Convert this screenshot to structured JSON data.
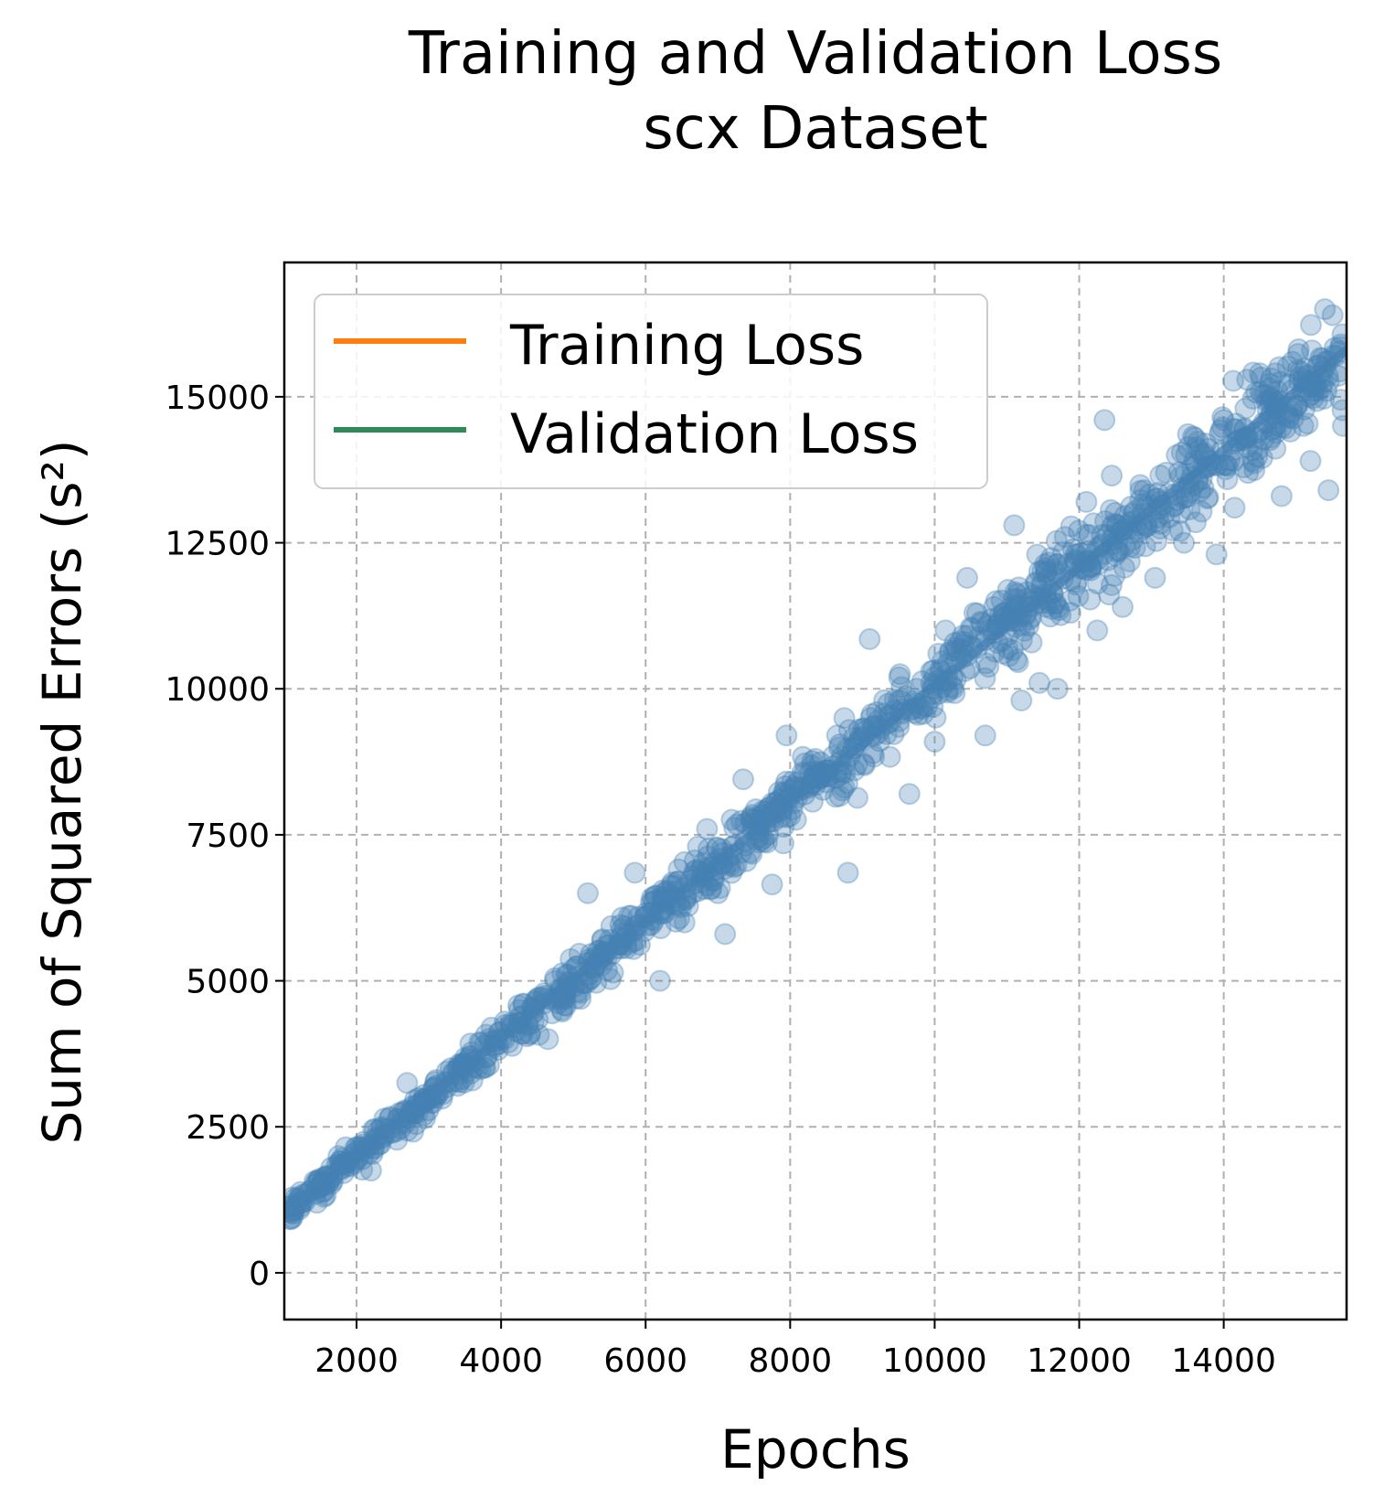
{
  "chart_data": {
    "type": "scatter",
    "title": "Training and Validation Loss",
    "subtitle": "scx Dataset",
    "xlabel": "Epochs",
    "ylabel": "Sum of Squared Errors (s²)",
    "xlim": [
      1000,
      15700
    ],
    "ylim": [
      -800,
      17300
    ],
    "xticks": [
      2000,
      4000,
      6000,
      8000,
      10000,
      12000,
      14000
    ],
    "yticks": [
      0,
      2500,
      5000,
      7500,
      10000,
      12500,
      15000
    ],
    "grid": true,
    "legend_position": "top-left",
    "legend": [
      {
        "label": "Training Loss",
        "color": "#ff7f0e"
      },
      {
        "label": "Validation Loss",
        "color": "#2e8b57"
      }
    ],
    "point_color": "#4682b4",
    "trend_line": {
      "x": [
        1000,
        15700
      ],
      "y": [
        1000,
        15800
      ]
    },
    "series": [
      {
        "points": [
          [
            1050,
            1050
          ],
          [
            1350,
            1400
          ],
          [
            1450,
            1200
          ],
          [
            1550,
            1300
          ],
          [
            1650,
            1800
          ],
          [
            1750,
            2000
          ],
          [
            1850,
            2150
          ],
          [
            1950,
            1900
          ],
          [
            2100,
            2200
          ],
          [
            2200,
            1750
          ],
          [
            2350,
            2300
          ],
          [
            2500,
            2400
          ],
          [
            2600,
            2550
          ],
          [
            2700,
            3250
          ],
          [
            2800,
            2800
          ],
          [
            2950,
            2650
          ],
          [
            3100,
            3300
          ],
          [
            3250,
            3450
          ],
          [
            3400,
            3200
          ],
          [
            3550,
            3650
          ],
          [
            3700,
            3950
          ],
          [
            3800,
            3700
          ],
          [
            3900,
            3850
          ],
          [
            4050,
            4300
          ],
          [
            4150,
            4250
          ],
          [
            4250,
            4500
          ],
          [
            4400,
            4100
          ],
          [
            4500,
            4700
          ],
          [
            4650,
            4000
          ],
          [
            4750,
            5000
          ],
          [
            4900,
            5100
          ],
          [
            5050,
            5250
          ],
          [
            5200,
            6500
          ],
          [
            5300,
            5400
          ],
          [
            5450,
            5600
          ],
          [
            5600,
            5550
          ],
          [
            5750,
            5800
          ],
          [
            5850,
            6850
          ],
          [
            6000,
            6100
          ],
          [
            6100,
            6350
          ],
          [
            6200,
            5000
          ],
          [
            6300,
            6500
          ],
          [
            6450,
            6700
          ],
          [
            6550,
            6600
          ],
          [
            6700,
            6900
          ],
          [
            6850,
            7600
          ],
          [
            7000,
            6500
          ],
          [
            7100,
            5800
          ],
          [
            7200,
            7300
          ],
          [
            7350,
            8450
          ],
          [
            7500,
            7700
          ],
          [
            7600,
            7400
          ],
          [
            7750,
            6650
          ],
          [
            7850,
            8100
          ],
          [
            7950,
            9200
          ],
          [
            8100,
            8400
          ],
          [
            8200,
            8550
          ],
          [
            8350,
            8800
          ],
          [
            8500,
            8500
          ],
          [
            8650,
            9200
          ],
          [
            8750,
            9500
          ],
          [
            8800,
            6850
          ],
          [
            8950,
            9300
          ],
          [
            9100,
            10850
          ],
          [
            9200,
            9600
          ],
          [
            9350,
            9400
          ],
          [
            9500,
            9800
          ],
          [
            9650,
            8200
          ],
          [
            9750,
            10000
          ],
          [
            9850,
            9700
          ],
          [
            9950,
            10300
          ],
          [
            10050,
            10600
          ],
          [
            10150,
            11000
          ],
          [
            10300,
            10700
          ],
          [
            10450,
            11900
          ],
          [
            10550,
            11300
          ],
          [
            10700,
            9200
          ],
          [
            10850,
            11500
          ],
          [
            10950,
            10600
          ],
          [
            11100,
            12800
          ],
          [
            11200,
            9800
          ],
          [
            11300,
            11400
          ],
          [
            11450,
            10100
          ],
          [
            11550,
            12000
          ],
          [
            11700,
            10000
          ],
          [
            11800,
            12600
          ],
          [
            11950,
            12300
          ],
          [
            12100,
            13200
          ],
          [
            12250,
            11000
          ],
          [
            12350,
            14600
          ],
          [
            12450,
            13650
          ],
          [
            12600,
            11400
          ],
          [
            12750,
            13000
          ],
          [
            12900,
            13400
          ],
          [
            13050,
            11900
          ],
          [
            13200,
            13700
          ],
          [
            13350,
            14000
          ],
          [
            13450,
            12500
          ],
          [
            13600,
            14300
          ],
          [
            13750,
            14200
          ],
          [
            13900,
            12300
          ],
          [
            14000,
            14600
          ],
          [
            14150,
            13100
          ],
          [
            14300,
            14800
          ],
          [
            14400,
            13900
          ],
          [
            14500,
            15400
          ],
          [
            14650,
            14300
          ],
          [
            14800,
            13300
          ],
          [
            14950,
            15600
          ],
          [
            15100,
            14500
          ],
          [
            15200,
            13900
          ],
          [
            15300,
            15100
          ],
          [
            15400,
            16500
          ],
          [
            15450,
            13400
          ],
          [
            15550,
            15700
          ],
          [
            15650,
            14500
          ]
        ]
      }
    ]
  }
}
